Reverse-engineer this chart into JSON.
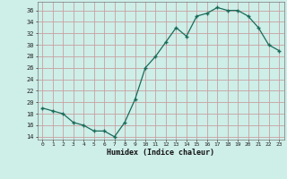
{
  "x": [
    0,
    1,
    2,
    3,
    4,
    5,
    6,
    7,
    8,
    9,
    10,
    11,
    12,
    13,
    14,
    15,
    16,
    17,
    18,
    19,
    20,
    21,
    22,
    23
  ],
  "y": [
    19,
    18.5,
    18,
    16.5,
    16,
    15,
    15,
    14,
    16.5,
    20.5,
    26,
    28,
    30.5,
    33,
    31.5,
    35,
    35.5,
    36.5,
    36,
    36,
    35,
    33,
    30,
    29
  ],
  "line_color": "#1a6b5a",
  "marker_color": "#1a6b5a",
  "bg_color": "#ceeee8",
  "grid_color": "#c8a0a0",
  "xlabel": "Humidex (Indice chaleur)",
  "ylim": [
    13.5,
    37.5
  ],
  "xlim": [
    -0.5,
    23.5
  ],
  "yticks": [
    14,
    16,
    18,
    20,
    22,
    24,
    26,
    28,
    30,
    32,
    34,
    36
  ],
  "xticks": [
    0,
    1,
    2,
    3,
    4,
    5,
    6,
    7,
    8,
    9,
    10,
    11,
    12,
    13,
    14,
    15,
    16,
    17,
    18,
    19,
    20,
    21,
    22,
    23
  ]
}
